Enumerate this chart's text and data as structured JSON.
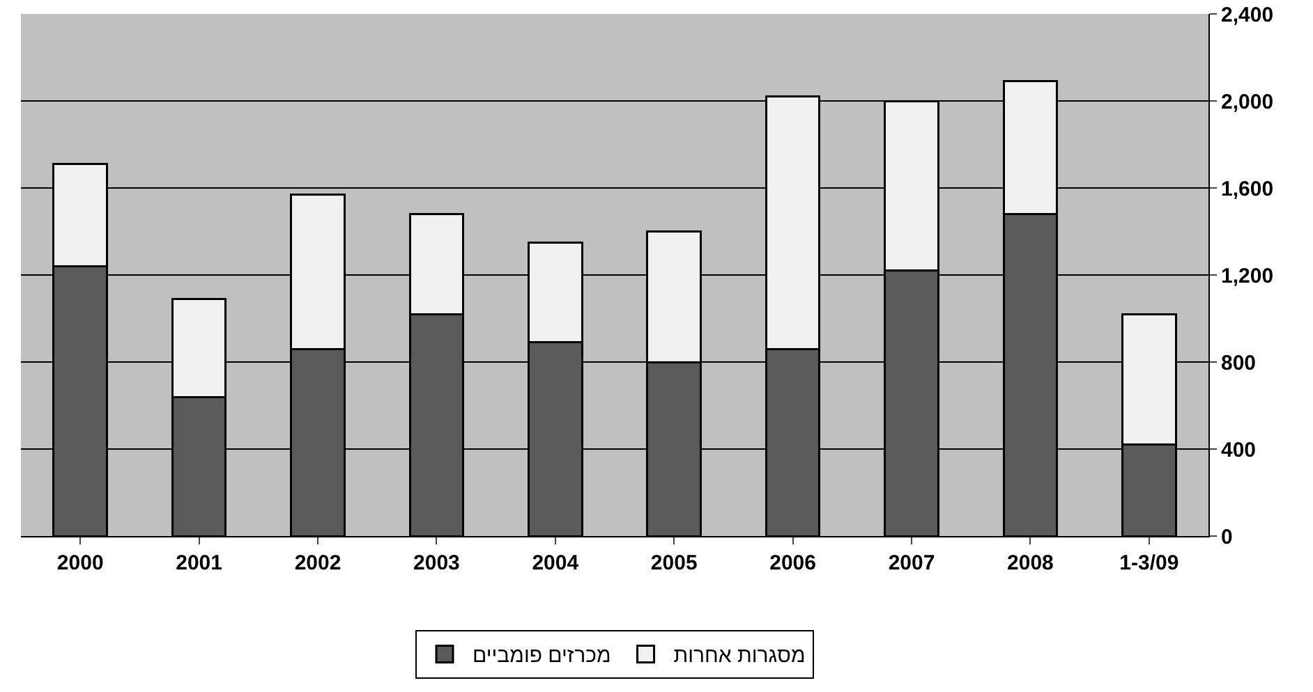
{
  "chart_data": {
    "type": "bar",
    "stacked": true,
    "categories": [
      "2000",
      "2001",
      "2002",
      "2003",
      "2004",
      "2005",
      "2006",
      "2007",
      "2008",
      "1-3/09"
    ],
    "series": [
      {
        "name": "מכרזים פומביים",
        "color": "#5a5a5a",
        "values": [
          1240,
          640,
          860,
          1020,
          890,
          800,
          860,
          1220,
          1480,
          420
        ]
      },
      {
        "name": "מסגרות אחרות",
        "color": "#f0f0f0",
        "values": [
          470,
          450,
          710,
          460,
          460,
          600,
          1160,
          780,
          610,
          600
        ]
      }
    ],
    "ylim": [
      0,
      2400
    ],
    "yticks": [
      {
        "value": 0,
        "label": "0"
      },
      {
        "value": 400,
        "label": "400"
      },
      {
        "value": 800,
        "label": "800"
      },
      {
        "value": 1200,
        "label": "1,200"
      },
      {
        "value": 1600,
        "label": "1,600"
      },
      {
        "value": 2000,
        "label": "2,000"
      },
      {
        "value": 2400,
        "label": "2,400"
      }
    ],
    "grid": "y",
    "legend": "bottom"
  }
}
